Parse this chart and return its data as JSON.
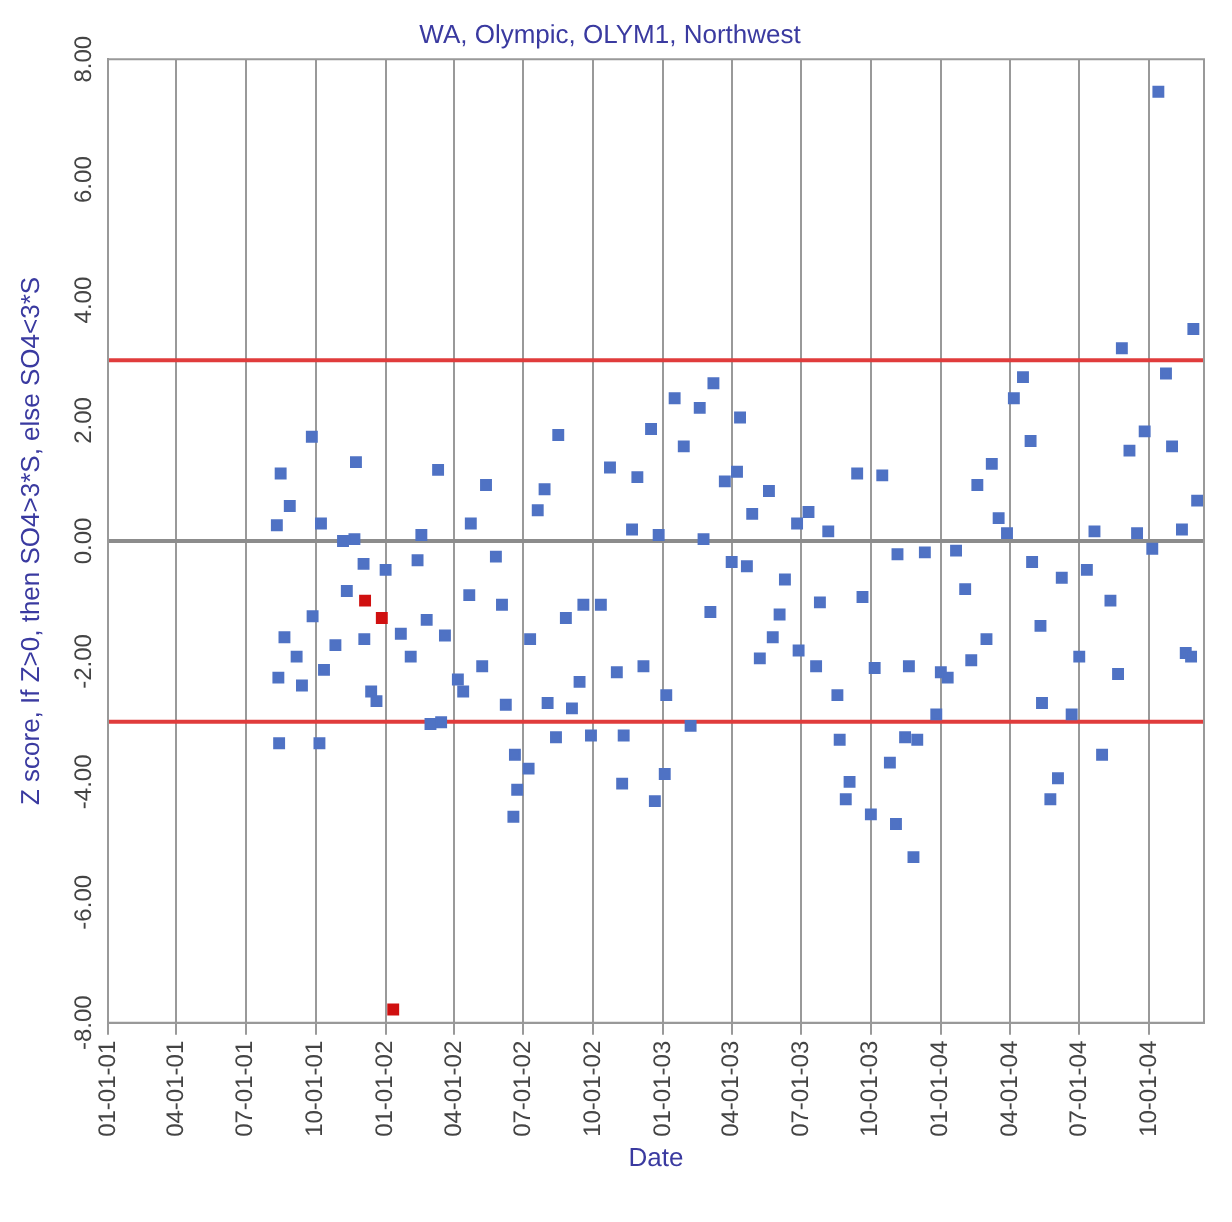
{
  "chart_data": {
    "type": "scatter",
    "title": "WA, Olympic, OLYM1, Northwest",
    "xlabel": "Date",
    "ylabel": "Z score, If Z>0, then SO4>3*S, else SO4<3*S",
    "marker": "square",
    "grid": "x",
    "legend": false,
    "xlim": [
      "2001-01-01",
      "2004-12-12"
    ],
    "xticks": [
      {
        "value": "2001-01-01",
        "label": "01-01-01"
      },
      {
        "value": "2001-04-01",
        "label": "04-01-01"
      },
      {
        "value": "2001-07-01",
        "label": "07-01-01"
      },
      {
        "value": "2001-10-01",
        "label": "10-01-01"
      },
      {
        "value": "2002-01-01",
        "label": "01-01-02"
      },
      {
        "value": "2002-04-01",
        "label": "04-01-02"
      },
      {
        "value": "2002-07-01",
        "label": "07-01-02"
      },
      {
        "value": "2002-10-01",
        "label": "10-01-02"
      },
      {
        "value": "2003-01-01",
        "label": "01-01-03"
      },
      {
        "value": "2003-04-01",
        "label": "04-01-03"
      },
      {
        "value": "2003-07-01",
        "label": "07-01-03"
      },
      {
        "value": "2003-10-01",
        "label": "10-01-03"
      },
      {
        "value": "2004-01-01",
        "label": "01-01-04"
      },
      {
        "value": "2004-04-01",
        "label": "04-01-04"
      },
      {
        "value": "2004-07-01",
        "label": "07-01-04"
      },
      {
        "value": "2004-10-01",
        "label": "10-01-04"
      }
    ],
    "ylim": [
      -8,
      8
    ],
    "yticks": [
      {
        "value": -8,
        "label": "-8.00"
      },
      {
        "value": -6,
        "label": "-6.00"
      },
      {
        "value": -4,
        "label": "-4.00"
      },
      {
        "value": -2,
        "label": "-2.00"
      },
      {
        "value": 0,
        "label": "0.00"
      },
      {
        "value": 2,
        "label": "2.00"
      },
      {
        "value": 4,
        "label": "4.00"
      },
      {
        "value": 6,
        "label": "6.00"
      },
      {
        "value": 8,
        "label": "8.00"
      }
    ],
    "ref_lines": [
      {
        "axis": "y",
        "value": 3,
        "color": "#e03c3c"
      },
      {
        "axis": "y",
        "value": -3,
        "color": "#e03c3c"
      },
      {
        "axis": "y",
        "value": 0,
        "color": "#8c8c8c"
      }
    ],
    "series": [
      {
        "color": "#4f72c4",
        "x": [
          "2001-08-11",
          "2001-08-16",
          "2001-08-13",
          "2001-08-14",
          "2001-08-21",
          "2001-08-28",
          "2001-09-06",
          "2001-09-13",
          "2001-09-26",
          "2001-09-27",
          "2001-10-06",
          "2001-10-08",
          "2001-10-12",
          "2001-10-27",
          "2001-11-06",
          "2001-11-11",
          "2001-11-21",
          "2001-11-23",
          "2001-12-03",
          "2001-12-04",
          "2001-12-13",
          "2001-12-20",
          "2002-01-01",
          "2002-01-21",
          "2002-02-03",
          "2002-02-12",
          "2002-02-17",
          "2002-02-24",
          "2002-03-01",
          "2002-03-11",
          "2002-03-15",
          "2002-03-20",
          "2002-04-06",
          "2002-04-13",
          "2002-04-23",
          "2002-04-21",
          "2002-05-08",
          "2002-05-13",
          "2002-05-26",
          "2002-06-03",
          "2002-06-08",
          "2002-06-18",
          "2002-06-20",
          "2002-06-23",
          "2002-07-08",
          "2002-07-10",
          "2002-07-20",
          "2002-07-29",
          "2002-08-02",
          "2002-08-16",
          "2002-08-13",
          "2002-08-26",
          "2002-09-03",
          "2002-09-13",
          "2002-09-18",
          "2002-09-28",
          "2002-10-11",
          "2002-10-23",
          "2002-11-01",
          "2002-11-08",
          "2002-11-10",
          "2002-11-21",
          "2002-11-28",
          "2002-12-06",
          "2002-12-16",
          "2002-12-21",
          "2002-12-26",
          "2003-01-03",
          "2003-01-05",
          "2003-01-16",
          "2003-01-28",
          "2003-02-06",
          "2003-02-18",
          "2003-02-23",
          "2003-03-04",
          "2003-03-08",
          "2003-03-23",
          "2003-04-08",
          "2003-04-12",
          "2003-04-01",
          "2003-04-21",
          "2003-04-28",
          "2003-05-08",
          "2003-05-20",
          "2003-05-25",
          "2003-06-03",
          "2003-06-10",
          "2003-06-26",
          "2003-06-28",
          "2003-07-11",
          "2003-07-21",
          "2003-07-26",
          "2003-08-06",
          "2003-08-18",
          "2003-08-21",
          "2003-08-29",
          "2003-09-03",
          "2003-09-13",
          "2003-09-20",
          "2003-10-01",
          "2003-10-06",
          "2003-10-16",
          "2003-10-26",
          "2003-11-03",
          "2003-11-05",
          "2003-11-15",
          "2003-11-20",
          "2003-11-26",
          "2003-12-01",
          "2003-12-11",
          "2003-12-26",
          "2004-01-01",
          "2004-01-10",
          "2004-01-21",
          "2004-02-02",
          "2004-02-10",
          "2004-02-18",
          "2004-03-01",
          "2004-03-08",
          "2004-03-17",
          "2004-03-28",
          "2004-04-06",
          "2004-04-18",
          "2004-04-28",
          "2004-04-30",
          "2004-05-11",
          "2004-05-13",
          "2004-05-24",
          "2004-06-03",
          "2004-06-08",
          "2004-06-21",
          "2004-07-01",
          "2004-07-11",
          "2004-07-21",
          "2004-07-31",
          "2004-08-11",
          "2004-08-21",
          "2004-08-26",
          "2004-09-05",
          "2004-09-15",
          "2004-09-25",
          "2004-10-05",
          "2004-10-13",
          "2004-10-23",
          "2004-10-31",
          "2004-11-13",
          "2004-11-18",
          "2004-11-28",
          "2004-12-03",
          "2004-11-25"
        ],
        "values": [
          0.26,
          1.12,
          -2.27,
          -3.36,
          -1.6,
          0.58,
          -1.92,
          -2.4,
          1.73,
          -1.25,
          -3.36,
          0.29,
          -2.14,
          -1.73,
          0,
          -0.83,
          0.03,
          1.31,
          -0.38,
          -1.63,
          -2.5,
          -2.66,
          -0.48,
          -1.54,
          -1.92,
          -0.32,
          0.1,
          -1.31,
          -3.04,
          1.18,
          -3.01,
          -1.57,
          -2.3,
          -2.5,
          0.29,
          -0.9,
          -2.08,
          0.93,
          -0.26,
          -1.06,
          -2.72,
          -4.58,
          -3.55,
          -4.13,
          -3.78,
          -1.63,
          0.51,
          0.86,
          -2.69,
          1.76,
          -3.26,
          -1.28,
          -2.78,
          -2.34,
          -1.06,
          -3.23,
          -1.06,
          1.22,
          -2.18,
          -4.03,
          -3.23,
          0.19,
          1.06,
          -2.08,
          1.86,
          -4.32,
          0.1,
          -3.87,
          -2.56,
          2.37,
          1.57,
          -3.07,
          2.21,
          0.03,
          -1.18,
          2.62,
          0.99,
          1.15,
          2.05,
          -0.35,
          -0.42,
          0.45,
          -1.95,
          0.83,
          -1.6,
          -1.22,
          -0.64,
          0.29,
          -1.82,
          0.48,
          -2.08,
          -1.02,
          0.16,
          -2.56,
          -3.3,
          -4.29,
          -4,
          1.12,
          -0.93,
          -4.54,
          -2.11,
          1.09,
          -3.68,
          -4.7,
          -0.22,
          -3.26,
          -2.08,
          -5.25,
          -3.3,
          -0.19,
          -2.88,
          -2.18,
          -2.27,
          -0.16,
          -0.8,
          -1.98,
          0.93,
          -1.63,
          1.28,
          0.38,
          0.13,
          2.37,
          2.72,
          1.66,
          -0.35,
          -1.41,
          -2.69,
          -4.29,
          -3.94,
          -0.61,
          -2.88,
          -1.92,
          -0.48,
          0.16,
          -3.55,
          -0.99,
          -2.21,
          3.2,
          1.5,
          0.13,
          1.82,
          -0.13,
          7.46,
          2.78,
          1.57,
          0.19,
          -1.86,
          3.52,
          0.67,
          -1.92
        ]
      },
      {
        "color": "#d01010",
        "x": [
          "2001-12-05",
          "2001-12-27",
          "2002-01-11"
        ],
        "values": [
          -0.99,
          -1.28,
          -7.78
        ]
      }
    ]
  }
}
